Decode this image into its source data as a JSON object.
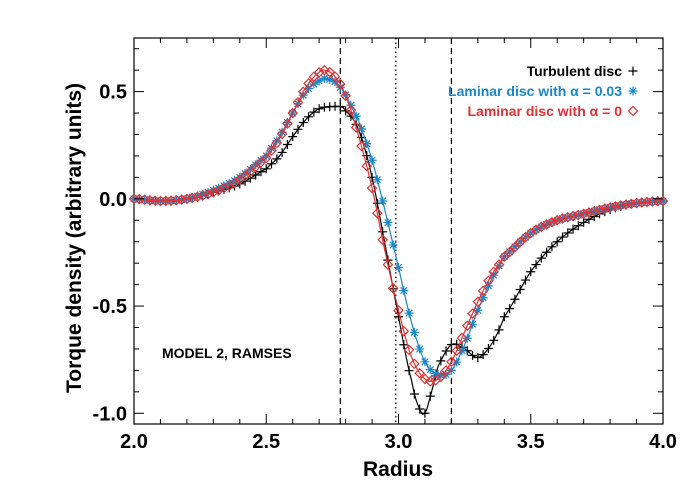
{
  "chart_data": {
    "type": "line",
    "title": "",
    "xlabel": "Radius",
    "ylabel": "Torque density (arbitrary units)",
    "xlim": [
      2.0,
      4.0
    ],
    "ylim": [
      -1.05,
      0.75
    ],
    "x_ticks": [
      2.0,
      2.5,
      3.0,
      3.5,
      4.0
    ],
    "x_tick_labels": [
      "2.0",
      "2.5",
      "3.0",
      "3.5",
      "4.0"
    ],
    "y_ticks": [
      -1.0,
      -0.5,
      0.0,
      0.5
    ],
    "y_tick_labels": [
      "-1.0",
      "-0.5",
      "0.0",
      "0.5"
    ],
    "grid": false,
    "legend_position": "top-right",
    "annotation": "MODEL 2, RAMSES",
    "vertical_lines": [
      {
        "x": 2.78,
        "style": "dashed"
      },
      {
        "x": 2.99,
        "style": "dotted"
      },
      {
        "x": 3.2,
        "style": "dashed"
      }
    ],
    "series": [
      {
        "name": "Turbulent disc",
        "legend_text": "Turbulent disc",
        "marker": "plus",
        "color": "#000000",
        "x": [
          2.0,
          2.1,
          2.2,
          2.3,
          2.4,
          2.5,
          2.55,
          2.6,
          2.65,
          2.7,
          2.75,
          2.78,
          2.8,
          2.85,
          2.9,
          2.95,
          3.0,
          3.05,
          3.08,
          3.1,
          3.12,
          3.15,
          3.2,
          3.25,
          3.3,
          3.35,
          3.4,
          3.5,
          3.6,
          3.7,
          3.8,
          3.9,
          4.0
        ],
        "y": [
          0.0,
          -0.01,
          0.0,
          0.03,
          0.07,
          0.14,
          0.2,
          0.29,
          0.37,
          0.42,
          0.43,
          0.43,
          0.41,
          0.32,
          0.1,
          -0.22,
          -0.55,
          -0.85,
          -0.98,
          -1.0,
          -0.92,
          -0.78,
          -0.68,
          -0.7,
          -0.74,
          -0.68,
          -0.55,
          -0.34,
          -0.2,
          -0.11,
          -0.05,
          -0.02,
          -0.01
        ]
      },
      {
        "name": "Laminar disc with α = 0.03",
        "legend_text": "Laminar disc with α = 0.03",
        "marker": "asterisk",
        "color": "#1a86c8",
        "x": [
          2.0,
          2.1,
          2.2,
          2.3,
          2.4,
          2.5,
          2.55,
          2.6,
          2.65,
          2.7,
          2.73,
          2.78,
          2.85,
          2.9,
          2.95,
          3.0,
          3.05,
          3.1,
          3.15,
          3.2,
          3.25,
          3.3,
          3.35,
          3.4,
          3.5,
          3.6,
          3.7,
          3.8,
          3.9,
          4.0
        ],
        "y": [
          0.0,
          -0.01,
          0.0,
          0.04,
          0.1,
          0.2,
          0.29,
          0.4,
          0.5,
          0.55,
          0.56,
          0.52,
          0.36,
          0.18,
          -0.06,
          -0.32,
          -0.58,
          -0.76,
          -0.82,
          -0.8,
          -0.68,
          -0.52,
          -0.38,
          -0.27,
          -0.16,
          -0.1,
          -0.07,
          -0.04,
          -0.02,
          -0.01
        ]
      },
      {
        "name": "Laminar disc with α = 0",
        "legend_text": "Laminar disc with α = 0",
        "marker": "diamond",
        "color": "#e03232",
        "x": [
          2.0,
          2.1,
          2.2,
          2.3,
          2.4,
          2.5,
          2.55,
          2.6,
          2.65,
          2.7,
          2.72,
          2.76,
          2.8,
          2.85,
          2.9,
          2.95,
          3.0,
          3.05,
          3.1,
          3.15,
          3.2,
          3.25,
          3.3,
          3.35,
          3.4,
          3.5,
          3.6,
          3.7,
          3.8,
          3.9,
          4.0
        ],
        "y": [
          0.0,
          -0.01,
          0.0,
          0.03,
          0.09,
          0.19,
          0.28,
          0.4,
          0.52,
          0.59,
          0.6,
          0.57,
          0.48,
          0.29,
          0.05,
          -0.25,
          -0.52,
          -0.74,
          -0.84,
          -0.84,
          -0.76,
          -0.62,
          -0.48,
          -0.36,
          -0.27,
          -0.16,
          -0.1,
          -0.07,
          -0.04,
          -0.02,
          -0.01
        ]
      }
    ]
  }
}
